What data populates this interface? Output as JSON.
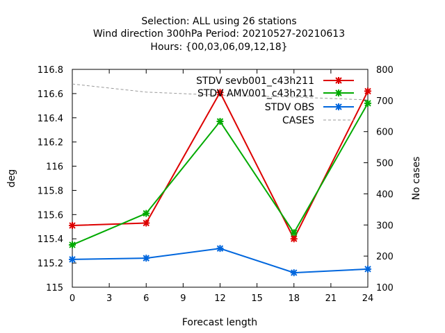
{
  "chart_data": {
    "type": "line",
    "title_lines": [
      "Selection: ALL using     26 stations",
      "Wind direction 300hPa   Period: 20210527-20210613",
      "Hours: {00,03,06,09,12,18}"
    ],
    "xlabel": "Forecast length",
    "ylabel": "deg",
    "y2label": "No cases",
    "xlim": [
      0,
      24
    ],
    "ylim": [
      115,
      116.8
    ],
    "y2lim": [
      100,
      800
    ],
    "x_ticks": [
      "0",
      "3",
      "6",
      "9",
      "12",
      "15",
      "18",
      "21",
      "24"
    ],
    "x_tick_values": [
      0,
      3,
      6,
      9,
      12,
      15,
      18,
      21,
      24
    ],
    "y_ticks": [
      "115",
      "115.2",
      "115.4",
      "115.6",
      "115.8",
      "116",
      "116.2",
      "116.4",
      "116.6",
      "116.8"
    ],
    "y_tick_values": [
      115,
      115.2,
      115.4,
      115.6,
      115.8,
      116,
      116.2,
      116.4,
      116.6,
      116.8
    ],
    "y2_ticks": [
      "100",
      "200",
      "300",
      "400",
      "500",
      "600",
      "700",
      "800"
    ],
    "y2_tick_values": [
      100,
      200,
      300,
      400,
      500,
      600,
      700,
      800
    ],
    "legend_position": "top-right",
    "grid": false,
    "x": [
      0,
      6,
      12,
      18,
      24
    ],
    "series": [
      {
        "name": "STDV sevb001_c43h211",
        "color": "#dd0000",
        "values": [
          115.51,
          115.53,
          116.61,
          115.4,
          116.62
        ],
        "axis": "y"
      },
      {
        "name": "STDV AMV001_c43h211",
        "color": "#00aa00",
        "values": [
          115.35,
          115.61,
          116.37,
          115.45,
          116.52
        ],
        "axis": "y"
      },
      {
        "name": "STDV OBS",
        "color": "#0066dd",
        "values": [
          115.23,
          115.24,
          115.32,
          115.12,
          115.15
        ],
        "axis": "y"
      },
      {
        "name": "CASES",
        "color": "#999999",
        "values": [
          753,
          727,
          717,
          711,
          702
        ],
        "axis": "y2",
        "dashed": true
      }
    ]
  }
}
